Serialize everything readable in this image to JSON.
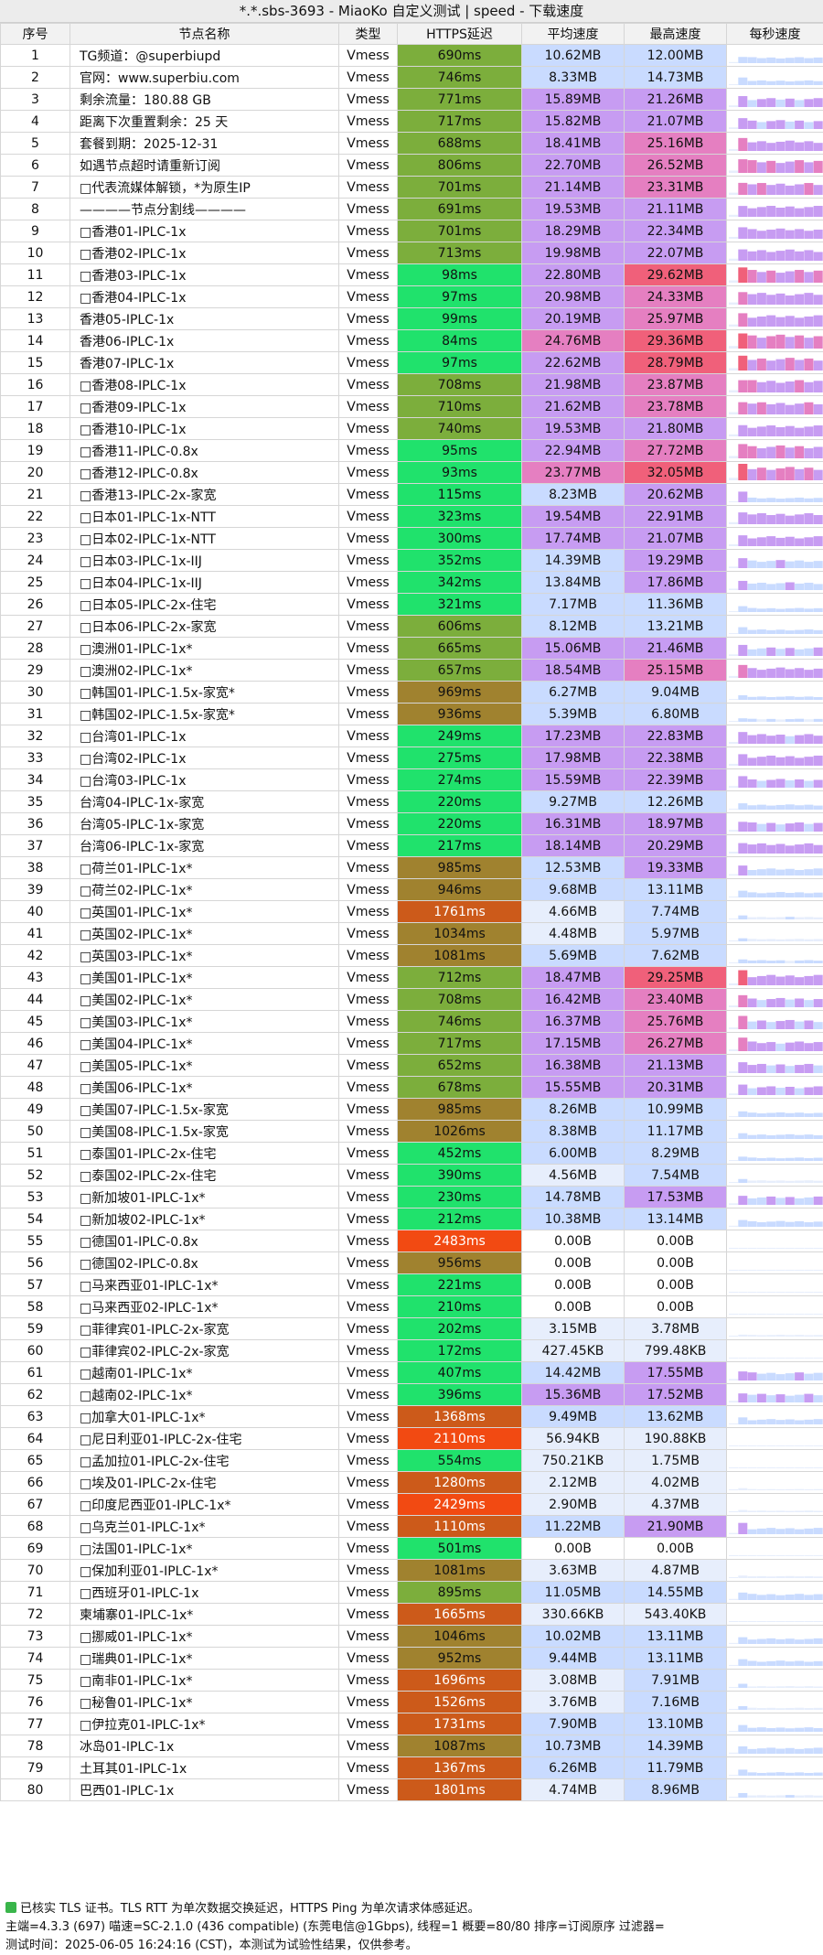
{
  "window": {
    "title": "*.*.sbs-3693 - MiaoKo 自定义测试 | speed - 下载速度"
  },
  "columns": [
    "序号",
    "节点名称",
    "类型",
    "HTTPS延迟",
    "平均速度",
    "最高速度",
    "每秒速度"
  ],
  "colors": {
    "lat_green": "#20e26c",
    "lat_olive": "#7cae3c",
    "lat_brown": "#a0822f",
    "lat_orange": "#cc5a1a",
    "lat_red": "#f24a12",
    "speed_blue": "#c9dbff",
    "speed_violet": "#c79cf2",
    "speed_pink": "#e57fc1",
    "speed_red": "#f0607a",
    "speed_light": "#e7eefc"
  },
  "rows": [
    [
      "1",
      "TG频道：@superbiupd",
      "Vmess",
      "690ms",
      "10.62MB",
      "12.00MB"
    ],
    [
      "2",
      "官网：www.superbiu.com",
      "Vmess",
      "746ms",
      "8.33MB",
      "14.73MB"
    ],
    [
      "3",
      "剩余流量：180.88 GB",
      "Vmess",
      "771ms",
      "15.89MB",
      "21.26MB"
    ],
    [
      "4",
      "距离下次重置剩余：25 天",
      "Vmess",
      "717ms",
      "15.82MB",
      "21.07MB"
    ],
    [
      "5",
      "套餐到期：2025-12-31",
      "Vmess",
      "688ms",
      "18.41MB",
      "25.16MB"
    ],
    [
      "6",
      "如遇节点超时请重新订阅",
      "Vmess",
      "806ms",
      "22.70MB",
      "26.52MB"
    ],
    [
      "7",
      "□代表流媒体解锁，*为原生IP",
      "Vmess",
      "701ms",
      "21.14MB",
      "23.31MB"
    ],
    [
      "8",
      "————节点分割线————",
      "Vmess",
      "691ms",
      "19.53MB",
      "21.11MB"
    ],
    [
      "9",
      "□香港01-IPLC-1x",
      "Vmess",
      "701ms",
      "18.29MB",
      "22.34MB"
    ],
    [
      "10",
      "□香港02-IPLC-1x",
      "Vmess",
      "713ms",
      "19.98MB",
      "22.07MB"
    ],
    [
      "11",
      "□香港03-IPLC-1x",
      "Vmess",
      "98ms",
      "22.80MB",
      "29.62MB"
    ],
    [
      "12",
      "□香港04-IPLC-1x",
      "Vmess",
      "97ms",
      "20.98MB",
      "24.33MB"
    ],
    [
      "13",
      "香港05-IPLC-1x",
      "Vmess",
      "99ms",
      "20.19MB",
      "25.97MB"
    ],
    [
      "14",
      "香港06-IPLC-1x",
      "Vmess",
      "84ms",
      "24.76MB",
      "29.36MB"
    ],
    [
      "15",
      "香港07-IPLC-1x",
      "Vmess",
      "97ms",
      "22.62MB",
      "28.79MB"
    ],
    [
      "16",
      "□香港08-IPLC-1x",
      "Vmess",
      "708ms",
      "21.98MB",
      "23.87MB"
    ],
    [
      "17",
      "□香港09-IPLC-1x",
      "Vmess",
      "710ms",
      "21.62MB",
      "23.78MB"
    ],
    [
      "18",
      "□香港10-IPLC-1x",
      "Vmess",
      "740ms",
      "19.53MB",
      "21.80MB"
    ],
    [
      "19",
      "□香港11-IPLC-0.8x",
      "Vmess",
      "95ms",
      "22.94MB",
      "27.72MB"
    ],
    [
      "20",
      "□香港12-IPLC-0.8x",
      "Vmess",
      "93ms",
      "23.77MB",
      "32.05MB"
    ],
    [
      "21",
      "□香港13-IPLC-2x-家宽",
      "Vmess",
      "115ms",
      "8.23MB",
      "20.62MB"
    ],
    [
      "22",
      "□日本01-IPLC-1x-NTT",
      "Vmess",
      "323ms",
      "19.54MB",
      "22.91MB"
    ],
    [
      "23",
      "□日本02-IPLC-1x-NTT",
      "Vmess",
      "300ms",
      "17.74MB",
      "21.07MB"
    ],
    [
      "24",
      "□日本03-IPLC-1x-IIJ",
      "Vmess",
      "352ms",
      "14.39MB",
      "19.29MB"
    ],
    [
      "25",
      "□日本04-IPLC-1x-IIJ",
      "Vmess",
      "342ms",
      "13.84MB",
      "17.86MB"
    ],
    [
      "26",
      "□日本05-IPLC-2x-住宅",
      "Vmess",
      "321ms",
      "7.17MB",
      "11.36MB"
    ],
    [
      "27",
      "□日本06-IPLC-2x-家宽",
      "Vmess",
      "606ms",
      "8.12MB",
      "13.21MB"
    ],
    [
      "28",
      "□澳洲01-IPLC-1x*",
      "Vmess",
      "665ms",
      "15.06MB",
      "21.46MB"
    ],
    [
      "29",
      "□澳洲02-IPLC-1x*",
      "Vmess",
      "657ms",
      "18.54MB",
      "25.15MB"
    ],
    [
      "30",
      "□韩国01-IPLC-1.5x-家宽*",
      "Vmess",
      "969ms",
      "6.27MB",
      "9.04MB"
    ],
    [
      "31",
      "□韩国02-IPLC-1.5x-家宽*",
      "Vmess",
      "936ms",
      "5.39MB",
      "6.80MB"
    ],
    [
      "32",
      "□台湾01-IPLC-1x",
      "Vmess",
      "249ms",
      "17.23MB",
      "22.83MB"
    ],
    [
      "33",
      "□台湾02-IPLC-1x",
      "Vmess",
      "275ms",
      "17.98MB",
      "22.38MB"
    ],
    [
      "34",
      "□台湾03-IPLC-1x",
      "Vmess",
      "274ms",
      "15.59MB",
      "22.39MB"
    ],
    [
      "35",
      "台湾04-IPLC-1x-家宽",
      "Vmess",
      "220ms",
      "9.27MB",
      "12.26MB"
    ],
    [
      "36",
      "台湾05-IPLC-1x-家宽",
      "Vmess",
      "220ms",
      "16.31MB",
      "18.97MB"
    ],
    [
      "37",
      "台湾06-IPLC-1x-家宽",
      "Vmess",
      "217ms",
      "18.14MB",
      "20.29MB"
    ],
    [
      "38",
      "□荷兰01-IPLC-1x*",
      "Vmess",
      "985ms",
      "12.53MB",
      "19.33MB"
    ],
    [
      "39",
      "□荷兰02-IPLC-1x*",
      "Vmess",
      "946ms",
      "9.68MB",
      "13.11MB"
    ],
    [
      "40",
      "□英国01-IPLC-1x*",
      "Vmess",
      "1761ms",
      "4.66MB",
      "7.74MB"
    ],
    [
      "41",
      "□英国02-IPLC-1x*",
      "Vmess",
      "1034ms",
      "4.48MB",
      "5.97MB"
    ],
    [
      "42",
      "□英国03-IPLC-1x*",
      "Vmess",
      "1081ms",
      "5.69MB",
      "7.62MB"
    ],
    [
      "43",
      "□美国01-IPLC-1x*",
      "Vmess",
      "712ms",
      "18.47MB",
      "29.25MB"
    ],
    [
      "44",
      "□美国02-IPLC-1x*",
      "Vmess",
      "708ms",
      "16.42MB",
      "23.40MB"
    ],
    [
      "45",
      "□美国03-IPLC-1x*",
      "Vmess",
      "746ms",
      "16.37MB",
      "25.76MB"
    ],
    [
      "46",
      "□美国04-IPLC-1x*",
      "Vmess",
      "717ms",
      "17.15MB",
      "26.27MB"
    ],
    [
      "47",
      "□美国05-IPLC-1x*",
      "Vmess",
      "652ms",
      "16.38MB",
      "21.13MB"
    ],
    [
      "48",
      "□美国06-IPLC-1x*",
      "Vmess",
      "678ms",
      "15.55MB",
      "20.31MB"
    ],
    [
      "49",
      "□美国07-IPLC-1.5x-家宽",
      "Vmess",
      "985ms",
      "8.26MB",
      "10.99MB"
    ],
    [
      "50",
      "□美国08-IPLC-1.5x-家宽",
      "Vmess",
      "1026ms",
      "8.38MB",
      "11.17MB"
    ],
    [
      "51",
      "□泰国01-IPLC-2x-住宅",
      "Vmess",
      "452ms",
      "6.00MB",
      "8.29MB"
    ],
    [
      "52",
      "□泰国02-IPLC-2x-住宅",
      "Vmess",
      "390ms",
      "4.56MB",
      "7.54MB"
    ],
    [
      "53",
      "□新加坡01-IPLC-1x*",
      "Vmess",
      "230ms",
      "14.78MB",
      "17.53MB"
    ],
    [
      "54",
      "□新加坡02-IPLC-1x*",
      "Vmess",
      "212ms",
      "10.38MB",
      "13.14MB"
    ],
    [
      "55",
      "□德国01-IPLC-0.8x",
      "Vmess",
      "2483ms",
      "0.00B",
      "0.00B"
    ],
    [
      "56",
      "□德国02-IPLC-0.8x",
      "Vmess",
      "956ms",
      "0.00B",
      "0.00B"
    ],
    [
      "57",
      "□马来西亚01-IPLC-1x*",
      "Vmess",
      "221ms",
      "0.00B",
      "0.00B"
    ],
    [
      "58",
      "□马来西亚02-IPLC-1x*",
      "Vmess",
      "210ms",
      "0.00B",
      "0.00B"
    ],
    [
      "59",
      "□菲律宾01-IPLC-2x-家宽",
      "Vmess",
      "202ms",
      "3.15MB",
      "3.78MB"
    ],
    [
      "60",
      "□菲律宾02-IPLC-2x-家宽",
      "Vmess",
      "172ms",
      "427.45KB",
      "799.48KB"
    ],
    [
      "61",
      "□越南01-IPLC-1x*",
      "Vmess",
      "407ms",
      "14.42MB",
      "17.55MB"
    ],
    [
      "62",
      "□越南02-IPLC-1x*",
      "Vmess",
      "396ms",
      "15.36MB",
      "17.52MB"
    ],
    [
      "63",
      "□加拿大01-IPLC-1x*",
      "Vmess",
      "1368ms",
      "9.49MB",
      "13.62MB"
    ],
    [
      "64",
      "□尼日利亚01-IPLC-2x-住宅",
      "Vmess",
      "2110ms",
      "56.94KB",
      "190.88KB"
    ],
    [
      "65",
      "□孟加拉01-IPLC-2x-住宅",
      "Vmess",
      "554ms",
      "750.21KB",
      "1.75MB"
    ],
    [
      "66",
      "□埃及01-IPLC-2x-住宅",
      "Vmess",
      "1280ms",
      "2.12MB",
      "4.02MB"
    ],
    [
      "67",
      "□印度尼西亚01-IPLC-1x*",
      "Vmess",
      "2429ms",
      "2.90MB",
      "4.37MB"
    ],
    [
      "68",
      "□乌克兰01-IPLC-1x*",
      "Vmess",
      "1110ms",
      "11.22MB",
      "21.90MB"
    ],
    [
      "69",
      "□法国01-IPLC-1x*",
      "Vmess",
      "501ms",
      "0.00B",
      "0.00B"
    ],
    [
      "70",
      "□保加利亚01-IPLC-1x*",
      "Vmess",
      "1081ms",
      "3.63MB",
      "4.87MB"
    ],
    [
      "71",
      "□西班牙01-IPLC-1x",
      "Vmess",
      "895ms",
      "11.05MB",
      "14.55MB"
    ],
    [
      "72",
      "柬埔寨01-IPLC-1x*",
      "Vmess",
      "1665ms",
      "330.66KB",
      "543.40KB"
    ],
    [
      "73",
      "□挪威01-IPLC-1x*",
      "Vmess",
      "1046ms",
      "10.02MB",
      "13.11MB"
    ],
    [
      "74",
      "□瑞典01-IPLC-1x*",
      "Vmess",
      "952ms",
      "9.44MB",
      "13.11MB"
    ],
    [
      "75",
      "□南非01-IPLC-1x*",
      "Vmess",
      "1696ms",
      "3.08MB",
      "7.91MB"
    ],
    [
      "76",
      "□秘鲁01-IPLC-1x*",
      "Vmess",
      "1526ms",
      "3.76MB",
      "7.16MB"
    ],
    [
      "77",
      "□伊拉克01-IPLC-1x*",
      "Vmess",
      "1731ms",
      "7.90MB",
      "13.10MB"
    ],
    [
      "78",
      "冰岛01-IPLC-1x",
      "Vmess",
      "1087ms",
      "10.73MB",
      "14.39MB"
    ],
    [
      "79",
      "土耳其01-IPLC-1x",
      "Vmess",
      "1367ms",
      "6.26MB",
      "11.79MB"
    ],
    [
      "80",
      "巴西01-IPLC-1x",
      "Vmess",
      "1801ms",
      "4.74MB",
      "8.96MB"
    ]
  ],
  "footer": {
    "line1": "已核实 TLS 证书。TLS RTT 为单次数据交换延迟，HTTPS Ping 为单次请求体感延迟。",
    "line2": "主端=4.3.3 (697) 喵速=SC-2.1.0 (436 compatible) (东莞电信@1Gbps), 线程=1 概要=80/80 排序=订阅原序 过滤器=",
    "line3": "测试时间：2025-06-05 16:24:16 (CST)，本测试为试验性结果，仅供参考。"
  }
}
